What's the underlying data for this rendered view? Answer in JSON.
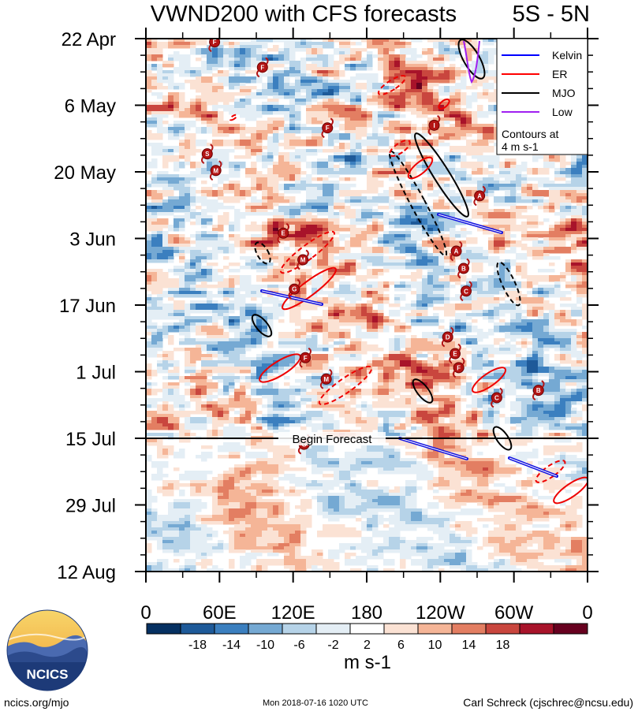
{
  "chart_data": {
    "type": "heatmap",
    "title": "VWND200 with CFS forecasts",
    "region": "5S - 5N",
    "y_tick_labels": [
      "22 Apr",
      "6 May",
      "20 May",
      "3 Jun",
      "17 Jun",
      "1 Jul",
      "15 Jul",
      "29 Jul",
      "12 Aug"
    ],
    "x_tick_labels": [
      "0",
      "60E",
      "120E",
      "180",
      "120W",
      "60W",
      "0"
    ],
    "x_tick_values_deg_east": [
      0,
      60,
      120,
      180,
      240,
      300,
      360
    ],
    "forecast_label": "Begin Forecast",
    "forecast_start_date": "15 Jul",
    "legend": {
      "entries": [
        {
          "name": "Kelvin",
          "color": "#0000ff"
        },
        {
          "name": "ER",
          "color": "#ff0000"
        },
        {
          "name": "MJO",
          "color": "#000000"
        },
        {
          "name": "Low",
          "color": "#a020f0"
        }
      ],
      "note_line1": "Contours at",
      "note_line2": "4 m s-1"
    },
    "colorbar": {
      "unit": "m s-1",
      "tick_labels": [
        "-18",
        "-14",
        "-10",
        "-6",
        "-2",
        "2",
        "6",
        "10",
        "14",
        "18"
      ],
      "colors": [
        "#053061",
        "#1e5a99",
        "#3b7fbf",
        "#75a9d3",
        "#b6d3e8",
        "#e4eef5",
        "#ffffff",
        "#fbe2d4",
        "#f5b597",
        "#e37e62",
        "#c9463e",
        "#a8132a",
        "#67001f"
      ]
    },
    "storm_markers": [
      {
        "lon": 56,
        "date_idx": 0.05,
        "letter": "F"
      },
      {
        "lon": 95,
        "date_idx": 0.43,
        "letter": "F"
      },
      {
        "lon": 148,
        "date_idx": 1.34,
        "letter": "F"
      },
      {
        "lon": 50,
        "date_idx": 1.73,
        "letter": "S"
      },
      {
        "lon": 57,
        "date_idx": 1.98,
        "letter": "M"
      },
      {
        "lon": 235,
        "date_idx": 1.3,
        "letter": "I"
      },
      {
        "lon": 272,
        "date_idx": 2.36,
        "letter": "A"
      },
      {
        "lon": 112,
        "date_idx": 2.92,
        "letter": "E"
      },
      {
        "lon": 128,
        "date_idx": 3.32,
        "letter": "M"
      },
      {
        "lon": 121,
        "date_idx": 3.76,
        "letter": "G"
      },
      {
        "lon": 253,
        "date_idx": 3.19,
        "letter": "A"
      },
      {
        "lon": 259,
        "date_idx": 3.45,
        "letter": "B"
      },
      {
        "lon": 261,
        "date_idx": 3.79,
        "letter": "C"
      },
      {
        "lon": 246,
        "date_idx": 4.48,
        "letter": "D"
      },
      {
        "lon": 252,
        "date_idx": 4.73,
        "letter": "E"
      },
      {
        "lon": 255,
        "date_idx": 4.94,
        "letter": "F"
      },
      {
        "lon": 130,
        "date_idx": 4.79,
        "letter": "F"
      },
      {
        "lon": 147,
        "date_idx": 5.11,
        "letter": "M"
      },
      {
        "lon": 286,
        "date_idx": 5.39,
        "letter": "C"
      },
      {
        "lon": 320,
        "date_idx": 5.28,
        "letter": "B"
      },
      {
        "lon": 129,
        "date_idx": 6.09,
        "letter": "G"
      }
    ]
  },
  "logo": {
    "text": "NCICS"
  },
  "footer": {
    "left": "ncics.org/mjo",
    "center": "Mon 2018-07-16 1020 UTC",
    "right": "Carl Schreck (cjschrec@ncsu.edu)"
  }
}
